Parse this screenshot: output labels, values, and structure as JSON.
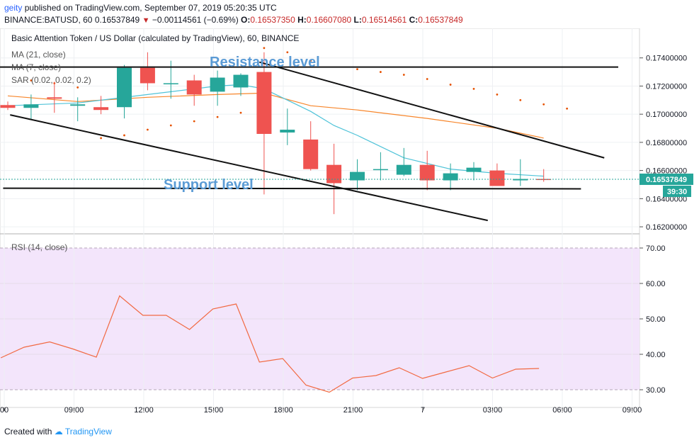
{
  "header": {
    "user": "geity",
    "published_text": "published on TradingView.com, September 07, 2019 05:20:35 UTC",
    "symbol": "BINANCE:BATUSD, 60",
    "last": "0.16537849",
    "change": "−0.00114561 (−0.69%)",
    "o_label": "O:",
    "o_value": "0.16537350",
    "h_label": "H:",
    "h_value": "0.16607080",
    "l_label": "L:",
    "l_value": "0.16514561",
    "c_label": "C:",
    "c_value": "0.16537849"
  },
  "legend": {
    "title": "Basic Attention Token / US Dollar (calculated by TradingView), 60, BINANCE",
    "ma21": "MA (21, close)",
    "ma7": "MA (7, close)",
    "sar": "SAR (0.02, 0.02, 0.2)"
  },
  "annotations": {
    "resistance": "Resistance level",
    "support": "Support level"
  },
  "price_badge": "0.16537849",
  "timer_badge": "39:30",
  "rsi_label": "RSI (14, close)",
  "footer": {
    "created": "Created with",
    "brand": "TradingView"
  },
  "colors": {
    "up": "#26a69a",
    "down": "#ef5350",
    "ma21": "#f7862b",
    "ma7": "#4fc3d8",
    "sar": "#e65100",
    "rsi": "#f26a43",
    "rsi_band": "#f3e5fb",
    "price": "#26a69a"
  },
  "chart_data": [
    {
      "type": "candlestick",
      "y_ticks": [
        "0.16200000",
        "0.16400000",
        "0.16600000",
        "0.16800000",
        "0.17000000",
        "0.17200000",
        "0.17400000"
      ],
      "x_ticks": [
        "00",
        "09:00",
        "12:00",
        "15:00",
        "18:00",
        "21:00",
        "7",
        "03:00",
        "06:00",
        "09:00"
      ],
      "ylim": [
        0.1615,
        0.1761
      ],
      "candles": [
        {
          "t": 0,
          "o": 0.17065,
          "h": 0.1709,
          "l": 0.1703,
          "c": 0.17045
        },
        {
          "t": 1,
          "o": 0.17045,
          "h": 0.1714,
          "l": 0.1696,
          "c": 0.1707
        },
        {
          "t": 2,
          "o": 0.1712,
          "h": 0.1723,
          "l": 0.1701,
          "c": 0.1711
        },
        {
          "t": 3,
          "o": 0.1706,
          "h": 0.1712,
          "l": 0.1695,
          "c": 0.1707
        },
        {
          "t": 4,
          "o": 0.1705,
          "h": 0.1713,
          "l": 0.17,
          "c": 0.1703
        },
        {
          "t": 5,
          "o": 0.1705,
          "h": 0.1735,
          "l": 0.1697,
          "c": 0.1733
        },
        {
          "t": 6,
          "o": 0.1733,
          "h": 0.1744,
          "l": 0.1717,
          "c": 0.1722
        },
        {
          "t": 7,
          "o": 0.1722,
          "h": 0.1738,
          "l": 0.1711,
          "c": 0.1722
        },
        {
          "t": 8,
          "o": 0.1724,
          "h": 0.1728,
          "l": 0.1706,
          "c": 0.1714
        },
        {
          "t": 9,
          "o": 0.1716,
          "h": 0.1731,
          "l": 0.1706,
          "c": 0.1726
        },
        {
          "t": 10,
          "o": 0.1719,
          "h": 0.1729,
          "l": 0.1713,
          "c": 0.1728
        },
        {
          "t": 11,
          "o": 0.173,
          "h": 0.1744,
          "l": 0.1643,
          "c": 0.1686
        },
        {
          "t": 12,
          "o": 0.1687,
          "h": 0.1704,
          "l": 0.1678,
          "c": 0.1689
        },
        {
          "t": 13,
          "o": 0.1682,
          "h": 0.1695,
          "l": 0.166,
          "c": 0.1661
        },
        {
          "t": 14,
          "o": 0.1664,
          "h": 0.1679,
          "l": 0.1629,
          "c": 0.1651
        },
        {
          "t": 15,
          "o": 0.1653,
          "h": 0.1668,
          "l": 0.1646,
          "c": 0.1659
        },
        {
          "t": 16,
          "o": 0.1661,
          "h": 0.1673,
          "l": 0.1653,
          "c": 0.1661
        },
        {
          "t": 17,
          "o": 0.1657,
          "h": 0.1676,
          "l": 0.1656,
          "c": 0.1664
        },
        {
          "t": 18,
          "o": 0.1664,
          "h": 0.1674,
          "l": 0.1646,
          "c": 0.1653
        },
        {
          "t": 19,
          "o": 0.1653,
          "h": 0.1665,
          "l": 0.1646,
          "c": 0.1658
        },
        {
          "t": 20,
          "o": 0.1659,
          "h": 0.1666,
          "l": 0.1653,
          "c": 0.1662
        },
        {
          "t": 21,
          "o": 0.166,
          "h": 0.1665,
          "l": 0.1649,
          "c": 0.1649
        },
        {
          "t": 22,
          "o": 0.1653,
          "h": 0.1668,
          "l": 0.1649,
          "c": 0.1654
        },
        {
          "t": 23,
          "o": 0.1654,
          "h": 0.1661,
          "l": 0.1652,
          "c": 0.16538
        }
      ],
      "ma21": [
        [
          0,
          0.1713
        ],
        [
          3,
          0.1709
        ],
        [
          6,
          0.1712
        ],
        [
          9,
          0.1714
        ],
        [
          11,
          0.1715
        ],
        [
          13,
          0.1706
        ],
        [
          15,
          0.1703
        ],
        [
          18,
          0.1697
        ],
        [
          21,
          0.169
        ],
        [
          23,
          0.1683
        ]
      ],
      "ma7": [
        [
          0,
          0.1706
        ],
        [
          3,
          0.1708
        ],
        [
          6,
          0.1714
        ],
        [
          9,
          0.172
        ],
        [
          10,
          0.1721
        ],
        [
          11,
          0.1718
        ],
        [
          13,
          0.1702
        ],
        [
          14,
          0.1692
        ],
        [
          15,
          0.1685
        ],
        [
          17,
          0.1669
        ],
        [
          19,
          0.1661
        ],
        [
          21,
          0.1658
        ],
        [
          23,
          0.1656
        ]
      ],
      "sar": [
        [
          1,
          0.1724
        ],
        [
          2,
          0.1722
        ],
        [
          3,
          0.1719
        ],
        [
          4,
          0.1683
        ],
        [
          5,
          0.1685
        ],
        [
          6,
          0.1689
        ],
        [
          7,
          0.1692
        ],
        [
          8,
          0.1695
        ],
        [
          9,
          0.1698
        ],
        [
          10,
          0.1701
        ],
        [
          11,
          0.1747
        ],
        [
          12,
          0.1744
        ],
        [
          13,
          0.1738
        ],
        [
          15,
          0.1732
        ],
        [
          16,
          0.173
        ],
        [
          17,
          0.1728
        ],
        [
          18,
          0.1725
        ],
        [
          19,
          0.1721
        ],
        [
          20,
          0.1718
        ],
        [
          21,
          0.1714
        ],
        [
          22,
          0.171
        ],
        [
          23,
          0.1707
        ],
        [
          24,
          0.1704
        ]
      ],
      "lines": {
        "resistance": [
          [
            -0.8,
            0.17335
          ],
          [
            26.2,
            0.17335
          ]
        ],
        "support": [
          [
            -0.2,
            0.16474
          ],
          [
            24.6,
            0.1647
          ]
        ],
        "upper_channel": [
          [
            10.8,
            0.1737
          ],
          [
            25.6,
            0.1669
          ]
        ],
        "lower_channel": [
          [
            0.1,
            0.16995
          ],
          [
            20.6,
            0.16245
          ]
        ]
      },
      "last_price": 0.16537849
    },
    {
      "type": "line",
      "name": "RSI (14, close)",
      "y_ticks": [
        "30.00",
        "40.00",
        "50.00",
        "60.00",
        "70.00"
      ],
      "ylim": [
        25,
        74
      ],
      "band": [
        30,
        70
      ],
      "values": [
        [
          -0.3,
          39
        ],
        [
          0.7,
          42
        ],
        [
          1.8,
          43.5
        ],
        [
          2.8,
          41.5
        ],
        [
          3.8,
          39.2
        ],
        [
          4.8,
          56.5
        ],
        [
          5.8,
          51
        ],
        [
          6.8,
          51
        ],
        [
          7.8,
          47
        ],
        [
          8.8,
          52.8
        ],
        [
          9.8,
          54.2
        ],
        [
          10.8,
          37.8
        ],
        [
          11.8,
          38.8
        ],
        [
          12.8,
          31.3
        ],
        [
          13.8,
          29.3
        ],
        [
          14.8,
          33.3
        ],
        [
          15.8,
          34
        ],
        [
          16.8,
          36.2
        ],
        [
          17.8,
          33.2
        ],
        [
          18.8,
          35
        ],
        [
          19.8,
          36.8
        ],
        [
          20.8,
          33.3
        ],
        [
          21.8,
          35.8
        ],
        [
          22.8,
          36
        ]
      ]
    }
  ]
}
